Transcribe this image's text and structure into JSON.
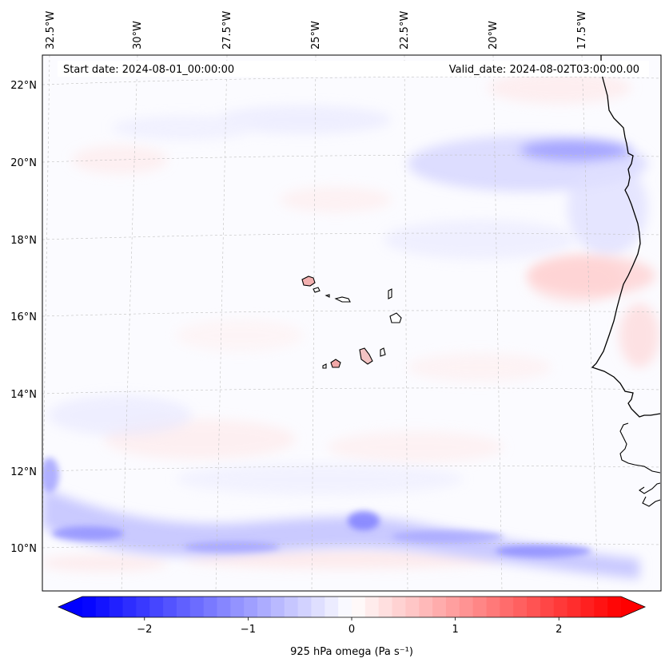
{
  "header": {
    "start_date": "Start date: 2024-08-01_00:00:00",
    "valid_date": "Valid_date: 2024-08-02T03:00:00.00"
  },
  "map": {
    "top_lon_ticks": [
      "32.5°W",
      "30°W",
      "27.5°W",
      "25°W",
      "22.5°W",
      "20°W",
      "17.5°W"
    ],
    "left_lat_ticks": [
      "22°N",
      "20°N",
      "18°N",
      "16°N",
      "14°N",
      "12°N",
      "10°N"
    ],
    "field": "925 hPa omega",
    "regions_shown": [
      "Cape Verde Islands",
      "West African coast (Senegal, Gambia, Guinea-Bissau, Mauritania)"
    ]
  },
  "colorbar": {
    "label": "925 hPa omega (Pa s⁻¹)",
    "tick_labels": [
      "−2",
      "−1",
      "0",
      "1",
      "2"
    ],
    "tick_values": [
      -2,
      -1,
      0,
      1,
      2
    ],
    "range": [
      -2.6,
      2.6
    ],
    "colormap": "bwr",
    "extend": "both",
    "colors": {
      "min": "#0000ff",
      "mid": "#ffffff",
      "max": "#ff0000"
    }
  }
}
